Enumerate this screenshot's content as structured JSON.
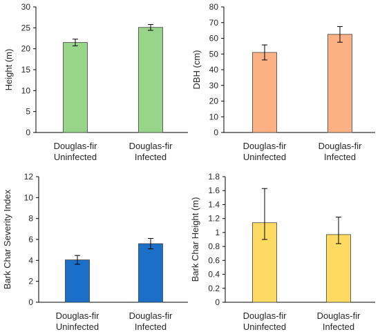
{
  "chart_data": [
    {
      "type": "bar",
      "ylabel": "Height (m)",
      "ylim": [
        0,
        30
      ],
      "yticks": [
        0,
        5,
        10,
        15,
        20,
        25,
        30
      ],
      "categories": [
        [
          "Douglas-fir",
          "Uninfected"
        ],
        [
          "Douglas-fir",
          "Infected"
        ]
      ],
      "values": [
        21.5,
        25.1
      ],
      "error": [
        0.8,
        0.7
      ],
      "color": "#98d58a"
    },
    {
      "type": "bar",
      "ylabel": "DBH (cm)",
      "ylim": [
        0,
        80
      ],
      "yticks": [
        0,
        10,
        20,
        30,
        40,
        50,
        60,
        70,
        80
      ],
      "categories": [
        [
          "Douglas-fir",
          "Uninfected"
        ],
        [
          "Douglas-fir",
          "Infected"
        ]
      ],
      "values": [
        51,
        62.5
      ],
      "error": [
        4.8,
        5.0
      ],
      "color": "#fbb183"
    },
    {
      "type": "bar",
      "ylabel": "Bark Char Severity Index",
      "ylim": [
        0,
        12
      ],
      "yticks": [
        0,
        2,
        4,
        6,
        8,
        10,
        12
      ],
      "categories": [
        [
          "Douglas-fir",
          "Uninfected"
        ],
        [
          "Douglas-fir",
          "Infected"
        ]
      ],
      "values": [
        4.05,
        5.6
      ],
      "error": [
        0.42,
        0.5
      ],
      "color": "#1b6fc7"
    },
    {
      "type": "bar",
      "ylabel": "Bark Char Height (m)",
      "ylim": [
        0,
        1.8
      ],
      "yticks": [
        0,
        0.2,
        0.4,
        0.6,
        0.8,
        1,
        1.2,
        1.4,
        1.6,
        1.8
      ],
      "categories": [
        [
          "Douglas-fir",
          "Uninfected"
        ],
        [
          "Douglas-fir",
          "Infected"
        ]
      ],
      "values": [
        1.14,
        0.97
      ],
      "error_low": [
        0.24,
        0.13
      ],
      "error_high": [
        0.49,
        0.25
      ],
      "color": "#fddb63"
    }
  ]
}
